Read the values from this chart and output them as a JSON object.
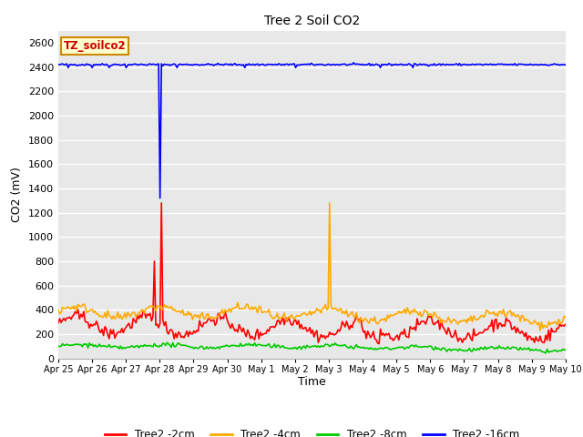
{
  "title": "Tree 2 Soil CO2",
  "xlabel": "Time",
  "ylabel": "CO2 (mV)",
  "ylim": [
    0,
    2700
  ],
  "yticks": [
    0,
    200,
    400,
    600,
    800,
    1000,
    1200,
    1400,
    1600,
    1800,
    2000,
    2200,
    2400,
    2600
  ],
  "bg_color": "#e8e8e8",
  "grid_color": "#ffffff",
  "label_box_text": "TZ_soilco2",
  "label_box_facecolor": "#ffffcc",
  "label_box_edgecolor": "#cc8800",
  "label_box_textcolor": "#cc0000",
  "colors": {
    "2cm": "#ff0000",
    "4cm": "#ffaa00",
    "8cm": "#00cc00",
    "16cm": "#0000ff"
  },
  "legend_labels": [
    "Tree2 -2cm",
    "Tree2 -4cm",
    "Tree2 -8cm",
    "Tree2 -16cm"
  ],
  "legend_colors": [
    "#ff0000",
    "#ffaa00",
    "#00cc00",
    "#0000ff"
  ],
  "tick_labels": [
    "Apr 25",
    "Apr 26",
    "Apr 27",
    "Apr 28",
    "Apr 29",
    "Apr 30",
    "May 1",
    "May 2",
    "May 3",
    "May 4",
    "May 5",
    "May 6",
    "May 7",
    "May 8",
    "May 9",
    "May 10"
  ]
}
